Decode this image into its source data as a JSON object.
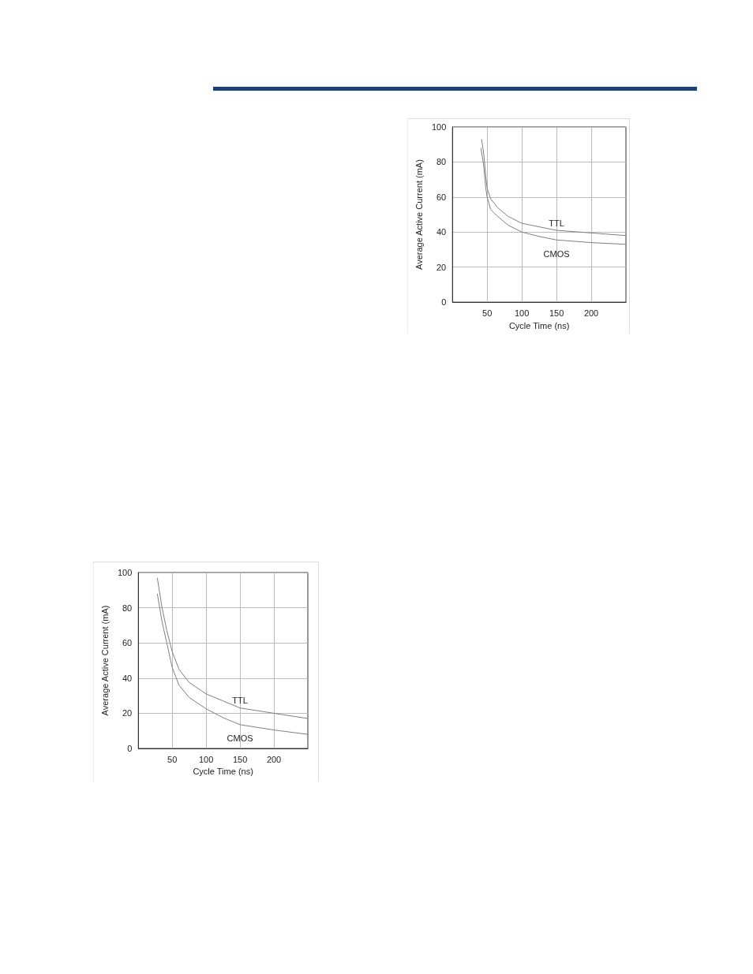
{
  "chart_data": [
    {
      "type": "line",
      "xlabel": "Cycle Time (ns)",
      "ylabel": "Average Active Current (mA)",
      "xlim": [
        0,
        250
      ],
      "ylim": [
        0,
        100
      ],
      "xticks": [
        50,
        100,
        150,
        200
      ],
      "yticks": [
        0,
        20,
        40,
        60,
        80,
        100
      ],
      "grid": true,
      "marker": "none",
      "line_style": "solid",
      "series": [
        {
          "name": "TTL",
          "color": "#7f7f7f",
          "x": [
            42,
            45,
            48,
            50,
            55,
            65,
            80,
            100,
            125,
            150,
            200,
            250
          ],
          "values": [
            93,
            85,
            72,
            65,
            59,
            54,
            49,
            45,
            43,
            41,
            39.5,
            38
          ]
        },
        {
          "name": "CMOS",
          "color": "#7f7f7f",
          "x": [
            41,
            45,
            48,
            50,
            55,
            65,
            80,
            100,
            125,
            150,
            200,
            250
          ],
          "values": [
            88,
            78,
            65,
            60,
            53,
            49,
            44,
            40,
            37.5,
            35.5,
            34,
            33
          ]
        }
      ]
    },
    {
      "type": "line",
      "xlabel": "Cycle Time (ns)",
      "ylabel": "Average Active Current (mA)",
      "xlim": [
        0,
        250
      ],
      "ylim": [
        0,
        100
      ],
      "xticks": [
        50,
        100,
        150,
        200
      ],
      "yticks": [
        0,
        20,
        40,
        60,
        80,
        100
      ],
      "grid": true,
      "marker": "none",
      "line_style": "solid",
      "series": [
        {
          "name": "TTL",
          "color": "#7f7f7f",
          "x": [
            28,
            35,
            42,
            50,
            60,
            75,
            100,
            125,
            150,
            200,
            250
          ],
          "values": [
            97,
            80,
            67,
            55,
            45,
            37.5,
            31,
            27,
            23,
            20,
            17
          ]
        },
        {
          "name": "CMOS",
          "color": "#7f7f7f",
          "x": [
            28,
            35,
            42,
            50,
            60,
            75,
            100,
            125,
            150,
            200,
            250
          ],
          "values": [
            88,
            72,
            60,
            46,
            36,
            29,
            22.5,
            17.5,
            13.5,
            10.5,
            8
          ]
        }
      ]
    }
  ]
}
